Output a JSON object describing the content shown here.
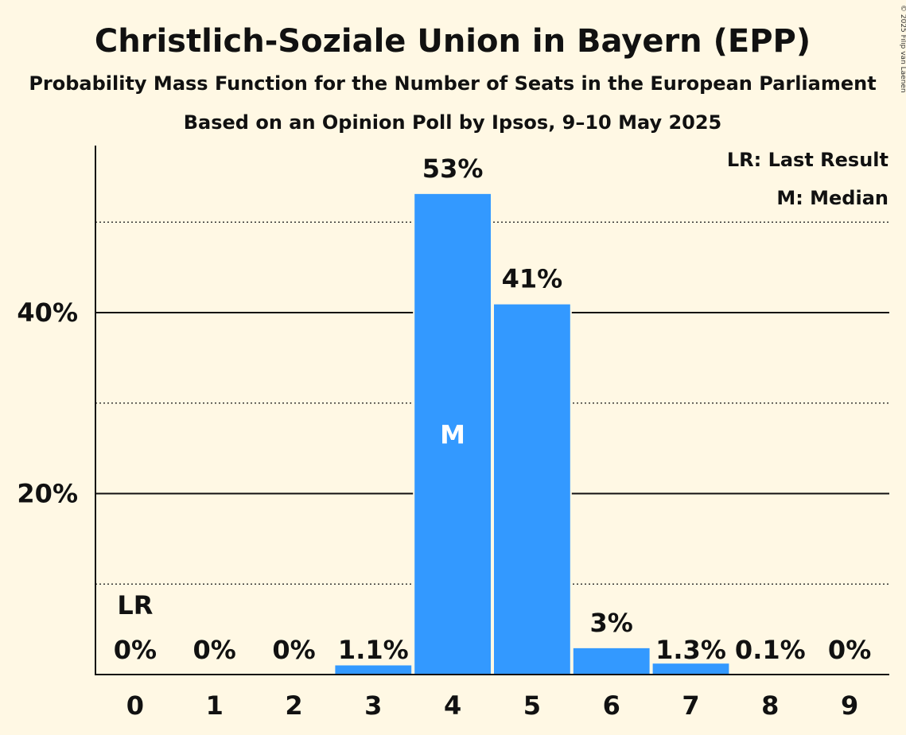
{
  "chart_data": {
    "type": "bar",
    "title": "Christlich-Soziale Union in Bayern (EPP)",
    "subtitle": "Probability Mass Function for the Number of Seats in the European Parliament",
    "subtitle2": "Based on an Opinion Poll by Ipsos, 9–10 May 2025",
    "categories": [
      "0",
      "1",
      "2",
      "3",
      "4",
      "5",
      "6",
      "7",
      "8",
      "9"
    ],
    "values": [
      0,
      0,
      0,
      1.1,
      53.2,
      41,
      3,
      1.3,
      0.1,
      0
    ],
    "data_labels": [
      "0%",
      "0%",
      "0%",
      "1.1%",
      "53%",
      "41%",
      "3%",
      "1.3%",
      "0.1%",
      "0%"
    ],
    "y_ticks": [
      {
        "value": 20,
        "label": "20%"
      },
      {
        "value": 40,
        "label": "40%"
      }
    ],
    "minor_gridlines": [
      10,
      30,
      50
    ],
    "ylim": [
      0,
      58
    ],
    "last_result_index": 0,
    "last_result_marker": "LR",
    "median_index": 4,
    "median_marker": "M",
    "legend": [
      "LR: Last Result",
      "M: Median"
    ],
    "legend_position": "top-right",
    "copyright": "© 2025 Filip van Laenen",
    "colors": {
      "background": "#fff8e4",
      "bar": "#3399ff",
      "text": "#111111"
    }
  }
}
